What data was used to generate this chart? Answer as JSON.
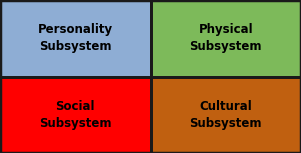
{
  "cells": [
    {
      "row": 0,
      "col": 0,
      "label": "Personality\nSubsystem",
      "color": "#8eadd4"
    },
    {
      "row": 0,
      "col": 1,
      "label": "Physical\nSubsystem",
      "color": "#7dba5a"
    },
    {
      "row": 1,
      "col": 0,
      "label": "Social\nSubsystem",
      "color": "#ff0000"
    },
    {
      "row": 1,
      "col": 1,
      "label": "Cultural\nSubsystem",
      "color": "#c06010"
    }
  ],
  "border_color": "#1a1a1a",
  "text_color": "#000000",
  "font_size": 8.5,
  "border_lw": 2.0,
  "figwidth": 3.01,
  "figheight": 1.53,
  "dpi": 100
}
